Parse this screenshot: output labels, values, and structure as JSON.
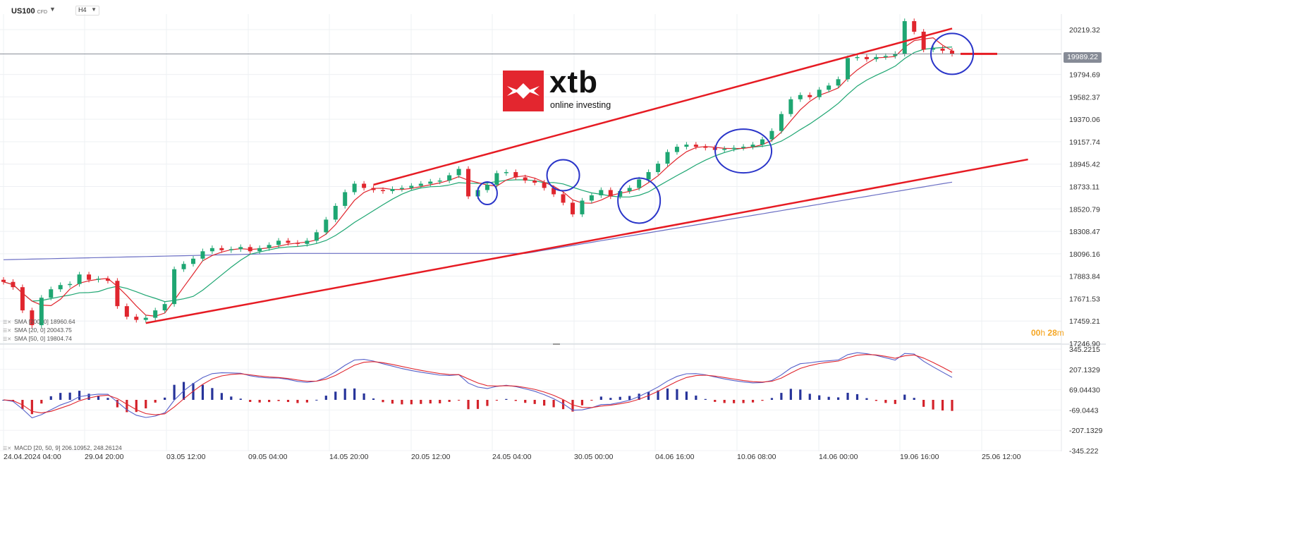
{
  "toolbar": {
    "symbol": "US100",
    "symbol_type": "CFD",
    "timeframe": "H4"
  },
  "logo": {
    "name": "xtb",
    "tagline": "online investing"
  },
  "current_price": "19989.22",
  "countdown": {
    "hours": "00",
    "h_unit": "h",
    "minutes": "28",
    "m_unit": "m"
  },
  "legend": {
    "sma200": "SMA [200, 0]  18960.64",
    "sma20": "SMA [20, 0]  20043.75",
    "sma50": "SMA [50, 0]  19804.74"
  },
  "macd_legend": "MACD [20, 50, 9]  206.10952,   248.26124",
  "colors": {
    "up": "#1ea672",
    "down": "#e0262e",
    "sma20": "#e0262e",
    "sma50": "#1ea672",
    "sma200": "#6b6fc4",
    "trendline": "#e61b23",
    "circle": "#2a35c9",
    "macd": "#5560c9",
    "signal": "#e0262e",
    "hist_pos": "#27349a",
    "hist_neg": "#d4222a"
  },
  "chart_data": [
    {
      "type": "candlestick",
      "title": "US100 CFD H4",
      "y_ticks": [
        "20219.32",
        "19794.69",
        "19582.37",
        "19370.06",
        "19157.74",
        "18945.42",
        "18733.11",
        "18520.79",
        "18308.47",
        "18096.16",
        "17883.84",
        "17671.53",
        "17459.21",
        "17246.90"
      ],
      "x_ticks": [
        "24.04.2024  04:00",
        "29.04  20:00",
        "03.05  12:00",
        "09.05  04:00",
        "14.05  20:00",
        "20.05  12:00",
        "24.05  04:00",
        "30.05  00:00",
        "04.06  16:00",
        "10.06  08:00",
        "14.06  00:00",
        "19.06  16:00",
        "25.06  12:00"
      ],
      "ylim": [
        17246.9,
        20360
      ],
      "close_values": [
        17830,
        17780,
        17560,
        17420,
        17680,
        17760,
        17800,
        17810,
        17900,
        17850,
        17860,
        17840,
        17600,
        17500,
        17470,
        17490,
        17560,
        17620,
        17950,
        18000,
        18050,
        18120,
        18150,
        18130,
        18140,
        18160,
        18120,
        18150,
        18180,
        18220,
        18200,
        18190,
        18220,
        18300,
        18420,
        18550,
        18680,
        18760,
        18720,
        18700,
        18690,
        18710,
        18720,
        18740,
        18760,
        18780,
        18790,
        18840,
        18900,
        18640,
        18700,
        18750,
        18860,
        18870,
        18820,
        18790,
        18770,
        18720,
        18660,
        18580,
        18470,
        18600,
        18650,
        18700,
        18640,
        18690,
        18720,
        18800,
        18870,
        18950,
        19060,
        19110,
        19130,
        19110,
        19100,
        19080,
        19090,
        19100,
        19110,
        19130,
        19180,
        19260,
        19420,
        19560,
        19600,
        19580,
        19650,
        19690,
        19750,
        19950,
        19960,
        19940,
        19960,
        19970,
        19990,
        20300,
        20200,
        20030,
        20040,
        20020,
        19990
      ],
      "sma20": "moving average line (red) — last value 20043.75",
      "sma50": "moving average line (green) — last value 19804.74",
      "sma200": "moving average line (blue) — last value 18960.64",
      "annotations": {
        "trendlines": "rising channel (red)",
        "resistance_marker": "short red horizontal line near 19990",
        "circles": 6
      }
    },
    {
      "type": "line",
      "title": "MACD [20, 50, 9]",
      "y_ticks": [
        "345.2215",
        "207.1329",
        "69.04430",
        "-69.0443",
        "-207.1329",
        "-345.222"
      ],
      "ylim": [
        -345.222,
        345.2215
      ],
      "series": [
        {
          "name": "MACD",
          "last": 206.10952
        },
        {
          "name": "Signal",
          "last": 248.26124
        }
      ],
      "histogram": "MACD - Signal bars (blue positive, red negative)"
    }
  ]
}
